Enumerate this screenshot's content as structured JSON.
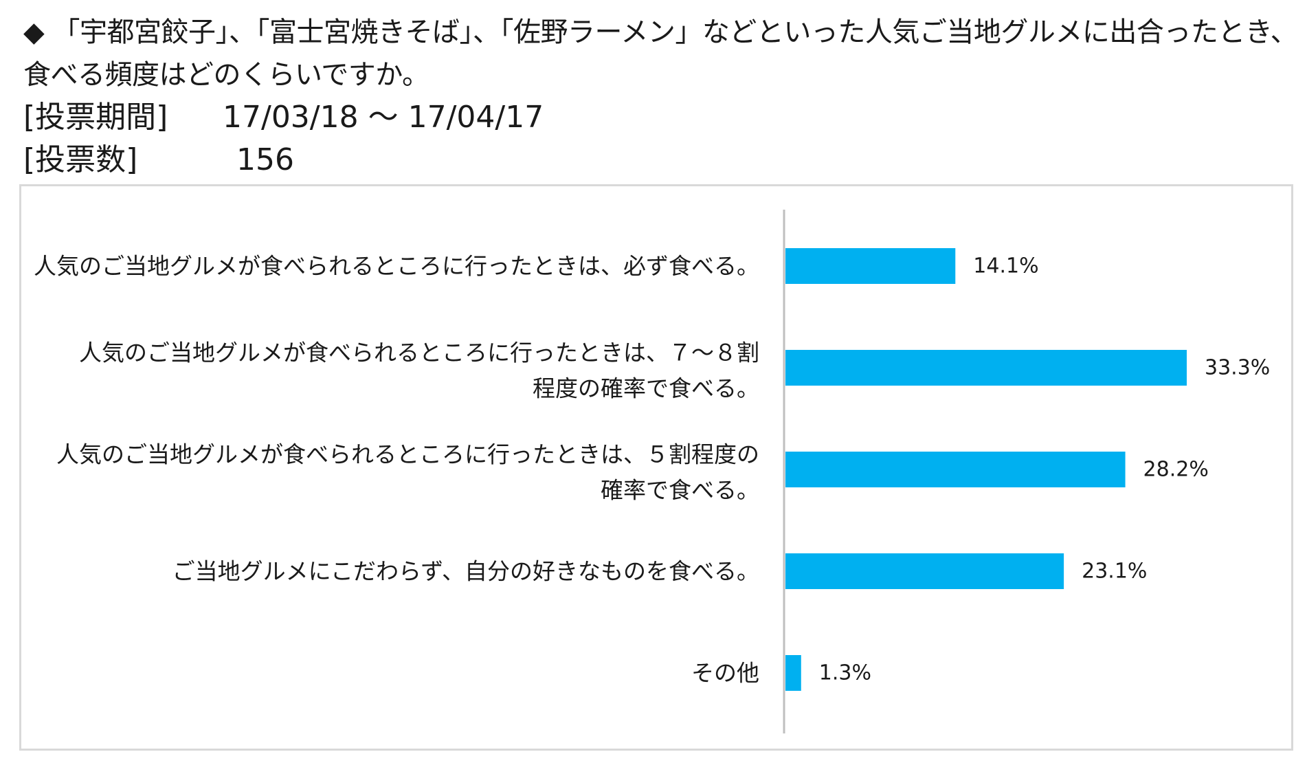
{
  "header": {
    "question_line1": "◆ 「宇都宮餃子」、「富士宮焼きそば」、「佐野ラーメン」などといった人気ご当地グルメに出合ったとき、",
    "question_line2": "食べる頻度はどのくらいですか。",
    "period_label": "[投票期間]",
    "period_value": "17/03/18 ～ 17/04/17",
    "count_label": "[投票数]",
    "count_value": "156"
  },
  "chart_data": {
    "type": "bar",
    "orientation": "horizontal",
    "categories": [
      [
        "人気のご当地グルメが食べられるところに行ったときは、必ず食べる。"
      ],
      [
        "人気のご当地グルメが食べられるところに行ったときは、７～８割",
        "程度の確率で食べる。"
      ],
      [
        "人気のご当地グルメが食べられるところに行ったときは、５割程度の",
        "確率で食べる。"
      ],
      [
        "ご当地グルメにこだわらず、自分の好きなものを食べる。"
      ],
      [
        "その他"
      ]
    ],
    "values": [
      14.1,
      33.3,
      28.2,
      23.1,
      1.3
    ],
    "value_labels": [
      "14.1%",
      "33.3%",
      "28.2%",
      "23.1%",
      "1.3%"
    ],
    "unit": "%",
    "xlim": [
      0,
      40
    ],
    "bar_color": "#00b0f0",
    "axis_color": "#bfbfbf",
    "grid": false,
    "legend": "none"
  }
}
